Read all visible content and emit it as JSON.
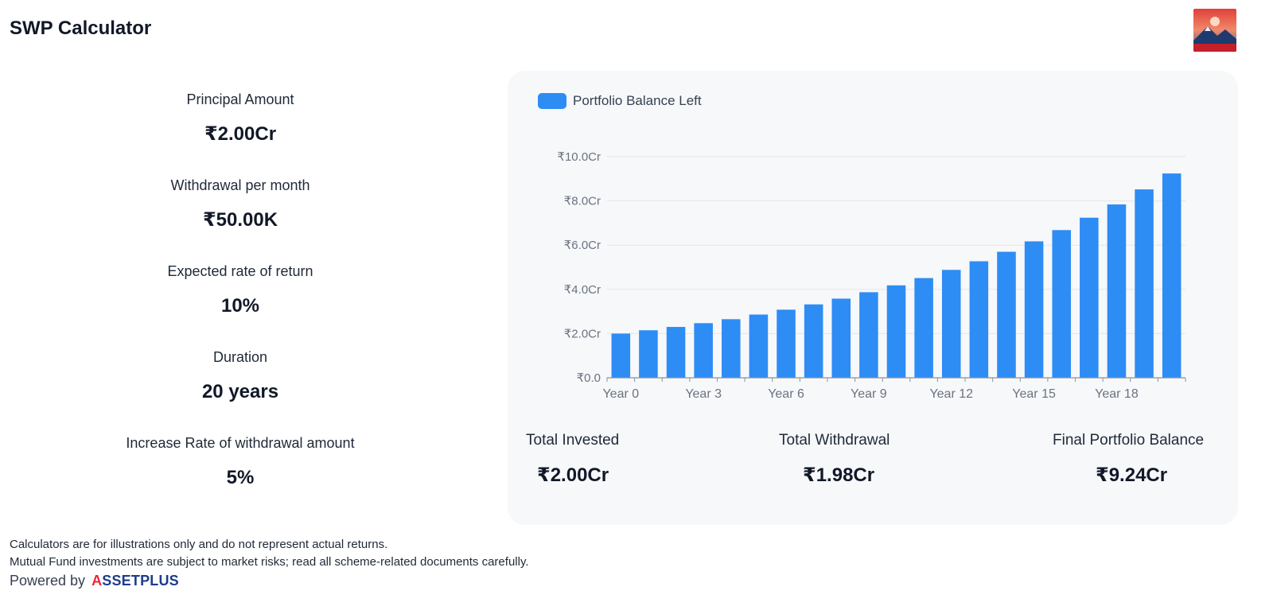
{
  "header": {
    "title": "SWP Calculator",
    "avatar_icon": "mountain-sunset-avatar"
  },
  "inputs": [
    {
      "label": "Principal Amount",
      "value": "₹2.00Cr"
    },
    {
      "label": "Withdrawal per month",
      "value": "₹50.00K"
    },
    {
      "label": "Expected rate of return",
      "value": "10%"
    },
    {
      "label": "Duration",
      "value": "20 years"
    },
    {
      "label": "Increase Rate of withdrawal amount",
      "value": "5%"
    }
  ],
  "chart_data": {
    "type": "bar",
    "legend": {
      "label": "Portfolio Balance Left",
      "position": "top-left"
    },
    "color": "#2e8cf5",
    "categories": [
      "Year 0",
      "Year 1",
      "Year 2",
      "Year 3",
      "Year 4",
      "Year 5",
      "Year 6",
      "Year 7",
      "Year 8",
      "Year 9",
      "Year 10",
      "Year 11",
      "Year 12",
      "Year 13",
      "Year 14",
      "Year 15",
      "Year 16",
      "Year 17",
      "Year 18",
      "Year 19",
      "Year 20"
    ],
    "x_tick_labels": [
      "Year 0",
      "Year 3",
      "Year 6",
      "Year 9",
      "Year 12",
      "Year 15",
      "Year 18"
    ],
    "series": [
      {
        "name": "Portfolio Balance Left",
        "values": [
          2.0,
          2.15,
          2.3,
          2.47,
          2.65,
          2.86,
          3.08,
          3.32,
          3.58,
          3.87,
          4.18,
          4.51,
          4.88,
          5.27,
          5.7,
          6.17,
          6.68,
          7.24,
          7.84,
          8.52,
          9.24
        ]
      }
    ],
    "y_unit": "Cr",
    "ylim": [
      0,
      10
    ],
    "y_ticks": [
      "₹0.0",
      "₹2.0Cr",
      "₹4.0Cr",
      "₹6.0Cr",
      "₹8.0Cr",
      "₹10.0Cr"
    ],
    "grid": true
  },
  "summary": {
    "total_invested": {
      "label": "Total Invested",
      "value": "₹2.00Cr"
    },
    "total_withdrawal": {
      "label": "Total Withdrawal",
      "value": "₹1.98Cr"
    },
    "final_balance": {
      "label": "Final Portfolio Balance",
      "value": "₹9.24Cr"
    }
  },
  "footer": {
    "disclaimer_1": "Calculators are for illustrations only and do not represent actual returns.",
    "disclaimer_2": "Mutual Fund investments are subject to market risks; read all scheme-related documents carefully.",
    "powered_by": "Powered by",
    "brand_a": "A",
    "brand_rest": "SSETPLUS"
  }
}
